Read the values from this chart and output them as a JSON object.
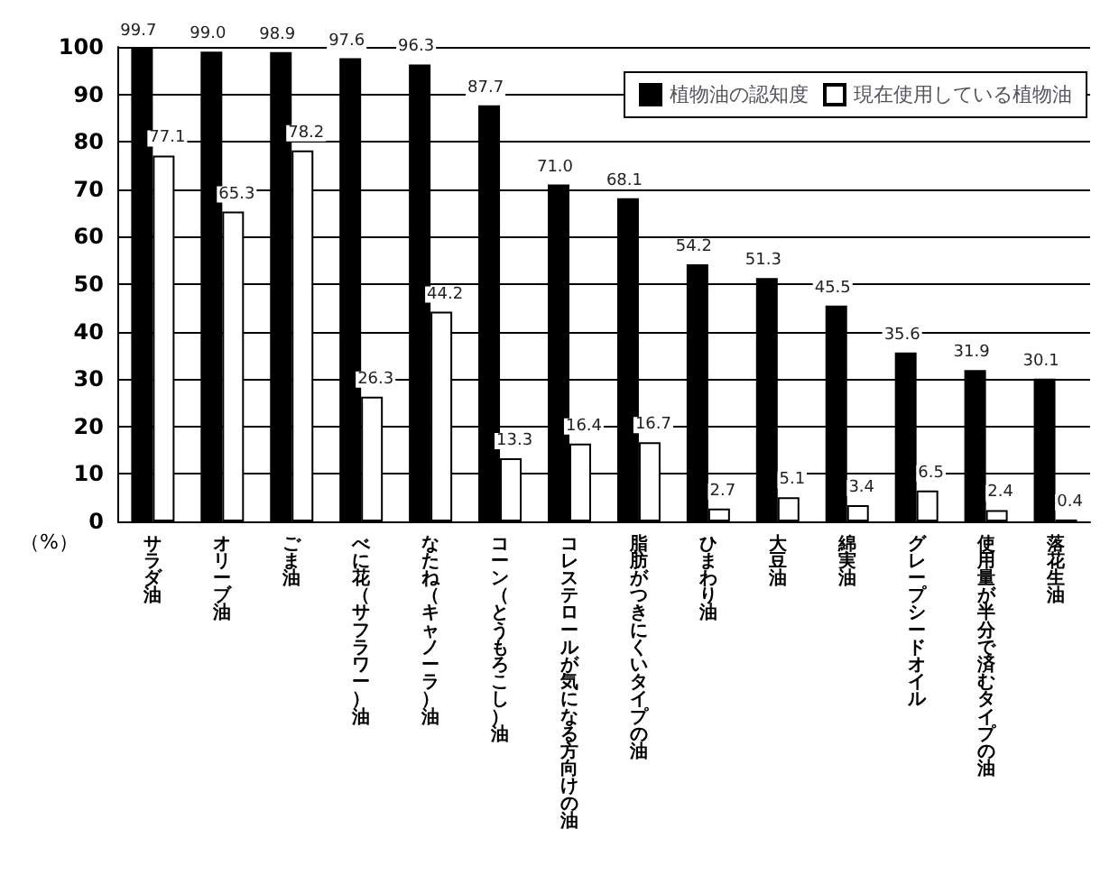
{
  "chart_data": {
    "type": "bar",
    "ylabel": "（%）",
    "categories": [
      "サラダ油",
      "オリーブ油",
      "ごま油",
      "べに花（サフラワー）油",
      "なたね（キャノーラ）油",
      "コーン（とうもろこし）油",
      "コレステロールが気になる方向けの油",
      "脂肪がつきにくいタイプの油",
      "ひまわり油",
      "大豆油",
      "綿実油",
      "グレープシードオイル",
      "使用量が半分で済むタイプの油",
      "落花生油"
    ],
    "series": [
      {
        "name": "植物油の認知度",
        "color": "#000000",
        "values": [
          99.7,
          99.0,
          98.9,
          97.6,
          96.3,
          87.7,
          71.0,
          68.1,
          54.2,
          51.3,
          45.5,
          35.6,
          31.9,
          30.1
        ],
        "value_labels": [
          "99.7",
          "99.0",
          "98.9",
          "97.6",
          "96.3",
          "87.7",
          "71.0",
          "68.1",
          "54.2",
          "51.3",
          "45.5",
          "35.6",
          "31.9",
          "30.1"
        ]
      },
      {
        "name": "現在使用している植物油",
        "color": "#ffffff",
        "values": [
          77.1,
          65.3,
          78.2,
          26.3,
          44.2,
          13.3,
          16.4,
          16.7,
          2.7,
          5.1,
          3.4,
          6.5,
          2.4,
          0.4
        ],
        "value_labels": [
          "77.1",
          "65.3",
          "78.2",
          "26.3",
          "44.2",
          "13.3",
          "16.4",
          "16.7",
          "2.7",
          "5.1",
          "3.4",
          "6.5",
          "2.4",
          "0.4"
        ]
      }
    ],
    "ylim": [
      0,
      100
    ],
    "yticks": [
      0,
      10,
      20,
      30,
      40,
      50,
      60,
      70,
      80,
      90,
      100
    ],
    "grid": "y",
    "legend": "top right"
  }
}
